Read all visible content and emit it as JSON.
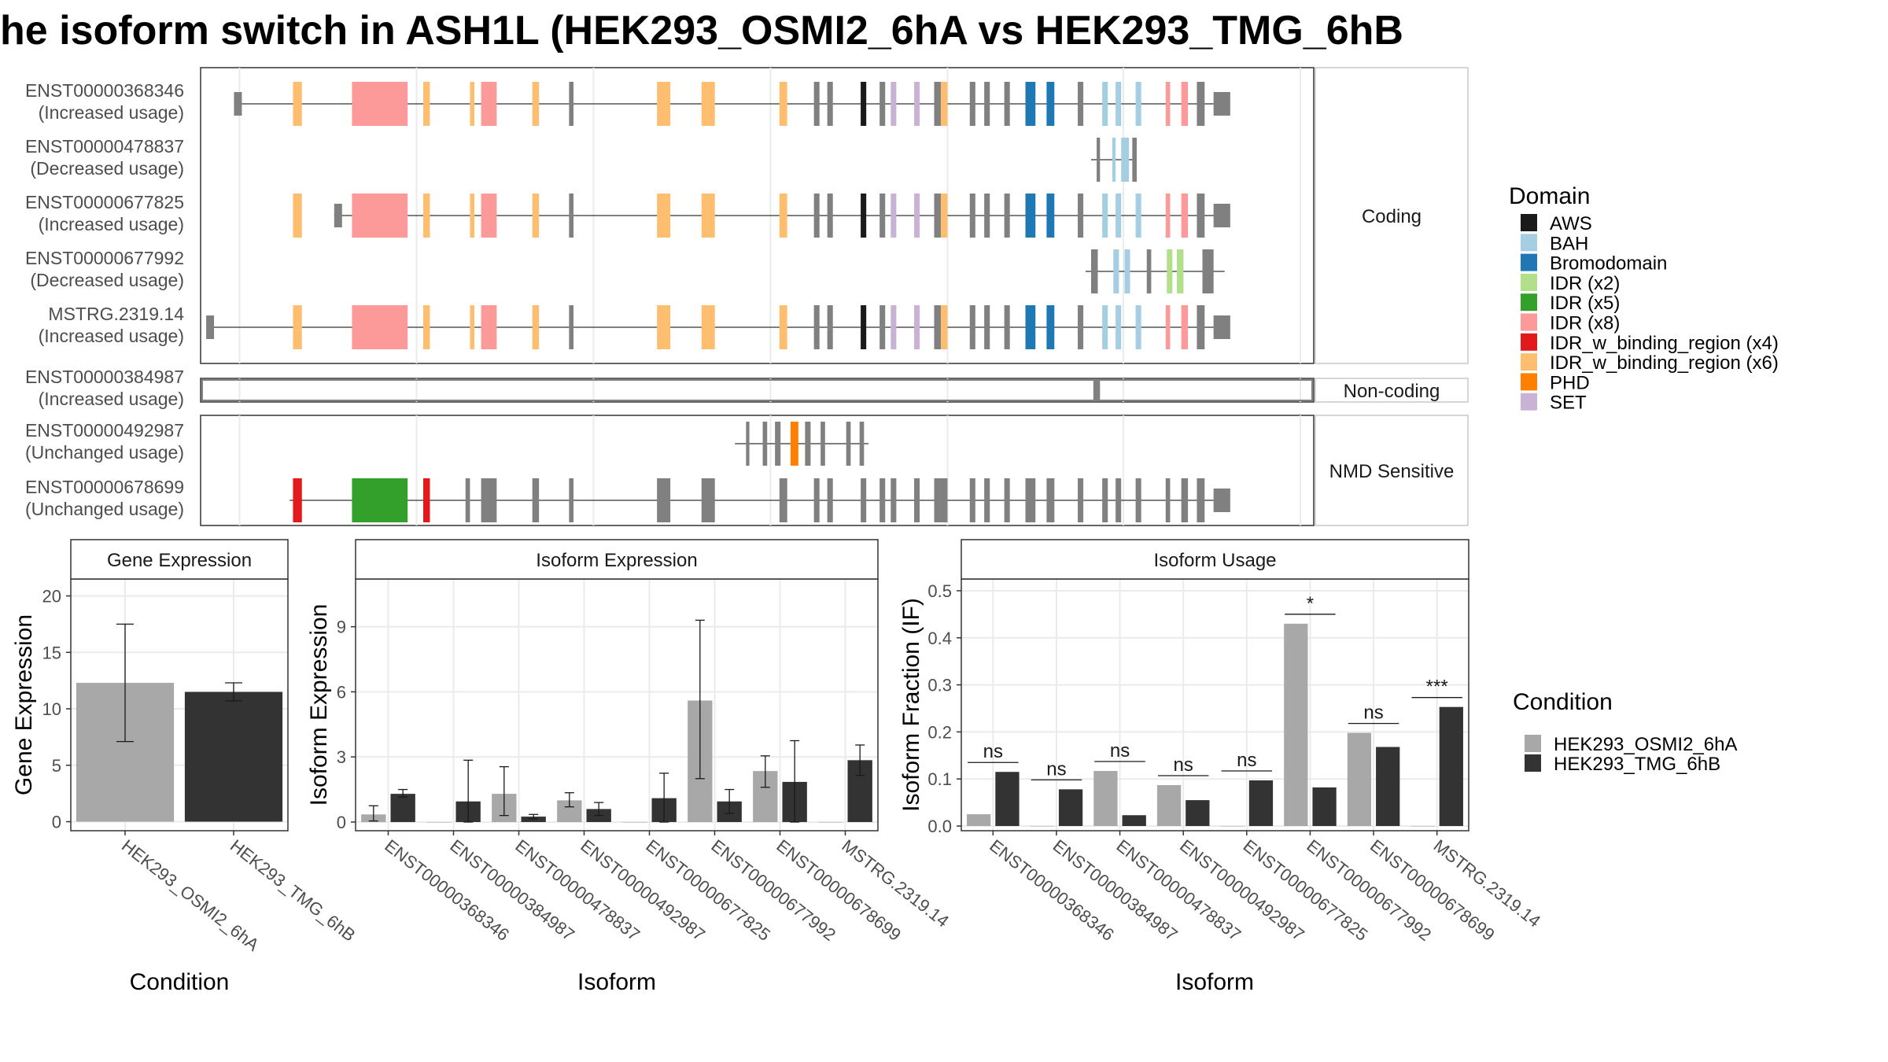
{
  "title": "he isoform switch in ASH1L (HEK293_OSMI2_6hA vs HEK293_TMG_6hB",
  "colors": {
    "osmi": "#a8a8a8",
    "tmg": "#333333",
    "exon": "#808080",
    "panel_border": "#333333",
    "strip_border": "#c8c8c8",
    "grid": "#ebebeb"
  },
  "domain_legend": {
    "title": "Domain",
    "items": [
      {
        "label": "AWS",
        "color": "#1a1a1a"
      },
      {
        "label": "BAH",
        "color": "#a6cee3"
      },
      {
        "label": "Bromodomain",
        "color": "#1f78b4"
      },
      {
        "label": "IDR (x2)",
        "color": "#b2df8a"
      },
      {
        "label": "IDR (x5)",
        "color": "#33a02c"
      },
      {
        "label": "IDR (x8)",
        "color": "#fb9a99"
      },
      {
        "label": "IDR_w_binding_region (x4)",
        "color": "#e31a1c"
      },
      {
        "label": "IDR_w_binding_region (x6)",
        "color": "#fdbf6f"
      },
      {
        "label": "PHD",
        "color": "#ff7f00"
      },
      {
        "label": "SET",
        "color": "#cab2d6"
      }
    ]
  },
  "condition_legend": {
    "title": "Condition",
    "items": [
      {
        "label": "HEK293_OSMI2_6hA",
        "color": "#a8a8a8"
      },
      {
        "label": "HEK293_TMG_6hB",
        "color": "#333333"
      }
    ]
  },
  "structure_groups": [
    {
      "label": "Coding",
      "transcripts": [
        {
          "id": "ENST00000368346",
          "usage": "(Increased usage)",
          "profile": "full",
          "start": 0.03
        },
        {
          "id": "ENST00000478837",
          "usage": "(Decreased usage)",
          "profile": "short478"
        },
        {
          "id": "ENST00000677825",
          "usage": "(Increased usage)",
          "profile": "full",
          "start": 0.12
        },
        {
          "id": "ENST00000677992",
          "usage": "(Decreased usage)",
          "profile": "short677992"
        },
        {
          "id": "MSTRG.2319.14",
          "usage": "(Increased usage)",
          "profile": "full",
          "start": 0.005
        }
      ]
    },
    {
      "label": "Non-coding",
      "transcripts": [
        {
          "id": "ENST00000384987",
          "usage": "(Increased usage)",
          "profile": "noncoding"
        }
      ]
    },
    {
      "label": "NMD Sensitive",
      "transcripts": [
        {
          "id": "ENST00000492987",
          "usage": "(Unchanged usage)",
          "profile": "short492"
        },
        {
          "id": "ENST00000678699",
          "usage": "(Unchanged usage)",
          "profile": "nmd"
        }
      ]
    }
  ],
  "chart_data": [
    {
      "type": "bar",
      "title": "Gene Expression",
      "xlabel": "Condition",
      "ylabel": "Gene Expression",
      "categories": [
        "HEK293_OSMI2_6hA",
        "HEK293_TMG_6hB"
      ],
      "values": [
        12.3,
        11.5
      ],
      "error_low": [
        7.1,
        10.7
      ],
      "error_high": [
        17.5,
        12.3
      ],
      "ylim": [
        -0.8,
        21.5
      ],
      "yticks": [
        0,
        5,
        10,
        15,
        20
      ],
      "grid": true
    },
    {
      "type": "bar",
      "title": "Isoform Expression",
      "xlabel": "Isoform",
      "ylabel": "Isoform Expression",
      "categories": [
        "ENST00000368346",
        "ENST00000384987",
        "ENST00000478837",
        "ENST00000492987",
        "ENST00000677825",
        "ENST00000677992",
        "ENST00000678699",
        "MSTRG.2319.14"
      ],
      "series": [
        {
          "name": "HEK293_OSMI2_6hA",
          "values": [
            0.35,
            0.0,
            1.3,
            1.0,
            0.0,
            5.6,
            2.35,
            0.0
          ],
          "error_low": [
            0.05,
            null,
            0.3,
            0.7,
            null,
            2.0,
            1.6,
            null
          ],
          "error_high": [
            0.75,
            null,
            2.55,
            1.35,
            null,
            9.3,
            3.05,
            null
          ]
        },
        {
          "name": "HEK293_TMG_6hB",
          "values": [
            1.3,
            0.95,
            0.25,
            0.6,
            1.1,
            0.95,
            1.85,
            2.85
          ],
          "error_low": [
            1.15,
            0.0,
            0.15,
            0.3,
            0.0,
            0.4,
            0.0,
            2.15
          ],
          "error_high": [
            1.5,
            2.85,
            0.35,
            0.9,
            2.25,
            1.5,
            3.75,
            3.55
          ]
        }
      ],
      "ylim": [
        -0.4,
        11.2
      ],
      "yticks": [
        0,
        3,
        6,
        9
      ],
      "grid": true
    },
    {
      "type": "bar",
      "title": "Isoform Usage",
      "xlabel": "Isoform",
      "ylabel": "Isoform Fraction (IF)",
      "categories": [
        "ENST00000368346",
        "ENST00000384987",
        "ENST00000478837",
        "ENST00000492987",
        "ENST00000677825",
        "ENST00000677992",
        "ENST00000678699",
        "MSTRG.2319.14"
      ],
      "series": [
        {
          "name": "HEK293_OSMI2_6hA",
          "values": [
            0.025,
            0.0,
            0.117,
            0.087,
            0.0,
            0.43,
            0.198,
            0.0
          ]
        },
        {
          "name": "HEK293_TMG_6hB",
          "values": [
            0.115,
            0.078,
            0.023,
            0.055,
            0.097,
            0.082,
            0.168,
            0.253
          ]
        }
      ],
      "significance": [
        "ns",
        "ns",
        "ns",
        "ns",
        "ns",
        "*",
        "ns",
        "***"
      ],
      "yticks": [
        0.0,
        0.1,
        0.2,
        0.3,
        0.4,
        0.5
      ],
      "ylim": [
        -0.01,
        0.525
      ],
      "grid": true
    }
  ]
}
